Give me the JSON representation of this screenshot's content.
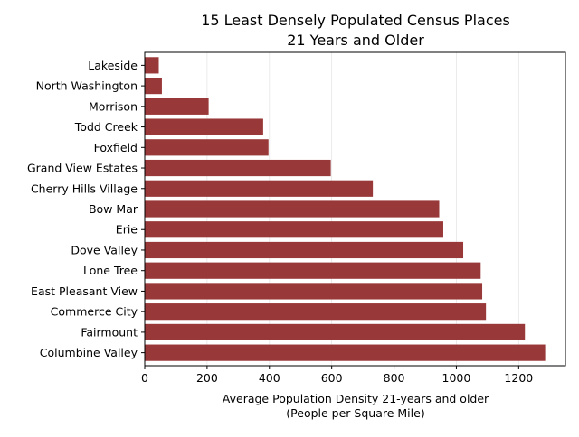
{
  "chart_data": {
    "type": "bar",
    "orientation": "horizontal",
    "title": [
      "15 Least Densely Populated Census Places",
      "21 Years and Older"
    ],
    "xlabel": [
      "Average Population Density 21-years and older",
      "(People per Square Mile)"
    ],
    "ylabel": "",
    "categories": [
      "Lakeside",
      "North Washington",
      "Morrison",
      "Todd Creek",
      "Foxfield",
      "Grand View Estates",
      "Cherry Hills Village",
      "Bow Mar",
      "Erie",
      "Dove Valley",
      "Lone Tree",
      "East Pleasant View",
      "Commerce City",
      "Fairmount",
      "Columbine Valley"
    ],
    "values": [
      45,
      55,
      205,
      380,
      397,
      597,
      732,
      945,
      958,
      1022,
      1078,
      1083,
      1095,
      1220,
      1285
    ],
    "xlim": [
      0,
      1350
    ],
    "xticks": [
      0,
      200,
      400,
      600,
      800,
      1000,
      1200
    ],
    "grid": "x",
    "bar_color": "#993838",
    "legend": "none"
  }
}
